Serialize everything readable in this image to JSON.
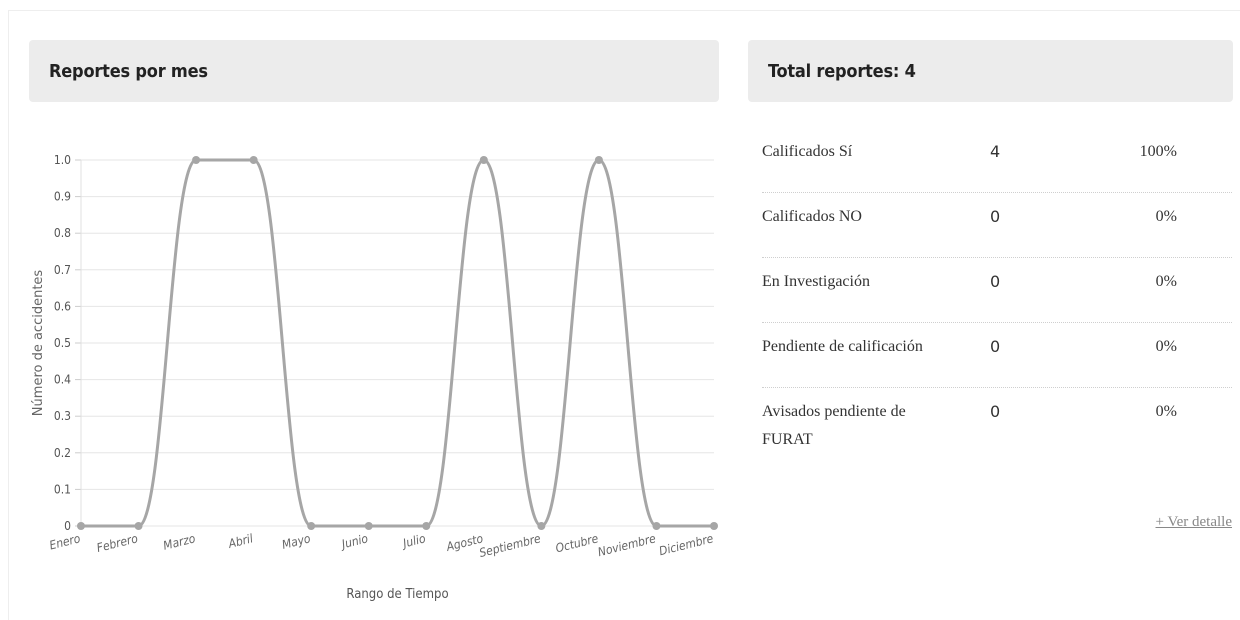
{
  "chart_panel": {
    "title": "Reportes por mes"
  },
  "summary_panel": {
    "title": "Total reportes: 4",
    "rows": [
      {
        "label": "Calificados Sí",
        "count": "4",
        "percent": "100%"
      },
      {
        "label": "Calificados NO",
        "count": "0",
        "percent": "0%"
      },
      {
        "label": "En Investigación",
        "count": "0",
        "percent": "0%"
      },
      {
        "label": "Pendiente de calificación",
        "count": "0",
        "percent": "0%"
      },
      {
        "label": "Avisados pendiente de FURAT",
        "count": "0",
        "percent": "0%"
      }
    ],
    "link_label": "+ Ver detalle"
  },
  "colors": {
    "line": "#a6a6a6",
    "grid": "#e6e6e6",
    "header_bg": "#ececec"
  },
  "chart_data": {
    "type": "line",
    "categories": [
      "Enero",
      "Febrero",
      "Marzo",
      "Abril",
      "Mayo",
      "Junio",
      "Julio",
      "Agosto",
      "Septiembre",
      "Octubre",
      "Noviembre",
      "Diciembre"
    ],
    "series": [
      {
        "values": [
          0,
          0,
          1,
          1,
          0,
          0,
          0,
          1,
          0,
          1,
          0,
          0
        ]
      }
    ],
    "xlabel": "Rango de Tiempo",
    "ylabel": "Número de accidentes",
    "ylim": [
      0,
      1
    ],
    "yticks": [
      "0",
      "0.1",
      "0.2",
      "0.3",
      "0.4",
      "0.5",
      "0.6",
      "0.7",
      "0.8",
      "0.9",
      "1.0"
    ],
    "grid": true,
    "smooth": true
  }
}
